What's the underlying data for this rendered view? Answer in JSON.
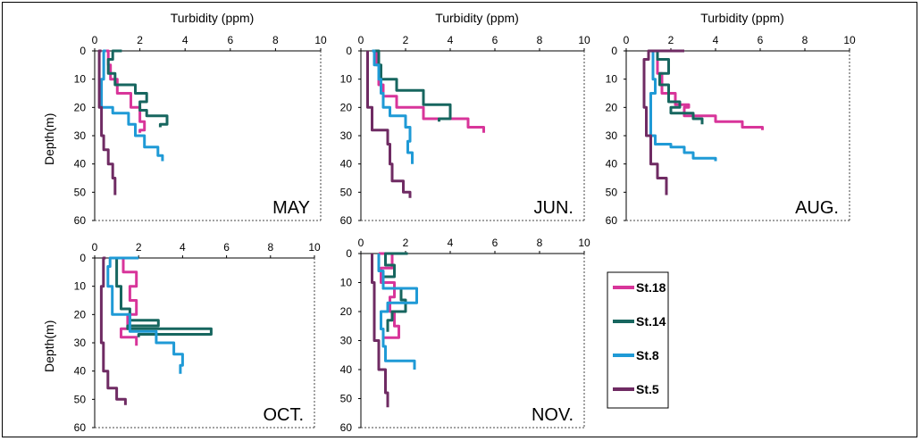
{
  "chart_data": {
    "type": "line",
    "xlabel": "Turbidity (ppm)",
    "ylabel": "Depth(m)",
    "xlim": [
      0,
      10
    ],
    "ylim": [
      0,
      60
    ],
    "x_ticks": [
      "0",
      "2",
      "4",
      "6",
      "8",
      "10"
    ],
    "y_ticks": [
      "0",
      "10",
      "20",
      "30",
      "40",
      "50",
      "60"
    ],
    "grid": false,
    "legend_position": "right, below AUG. panel",
    "legend": [
      "St.18",
      "St.14",
      "St.8",
      "St.5"
    ],
    "colors": {
      "St.18": "#d8359a",
      "St.14": "#17665f",
      "St.8": "#1f9ad6",
      "St.5": "#6f2b63"
    },
    "panels": [
      {
        "month": "MAY",
        "series": [
          {
            "name": "St.18",
            "points": [
              [
                0.5,
                0
              ],
              [
                0.6,
                5
              ],
              [
                0.7,
                10
              ],
              [
                1.0,
                15
              ],
              [
                1.6,
                20
              ],
              [
                2.0,
                25
              ],
              [
                2.2,
                28
              ],
              [
                2.0,
                29
              ]
            ]
          },
          {
            "name": "St.14",
            "points": [
              [
                1.2,
                0
              ],
              [
                0.8,
                3
              ],
              [
                0.6,
                8
              ],
              [
                0.9,
                12
              ],
              [
                1.8,
                15
              ],
              [
                2.3,
                18
              ],
              [
                2.0,
                21
              ],
              [
                2.3,
                23
              ],
              [
                3.2,
                26
              ],
              [
                2.9,
                27
              ]
            ]
          },
          {
            "name": "St.8",
            "points": [
              [
                0.5,
                0
              ],
              [
                0.4,
                5
              ],
              [
                0.4,
                10
              ],
              [
                0.3,
                15
              ],
              [
                0.3,
                20
              ],
              [
                0.8,
                22
              ],
              [
                1.5,
                26
              ],
              [
                1.8,
                30
              ],
              [
                2.2,
                34
              ],
              [
                2.8,
                37
              ],
              [
                3.0,
                39
              ]
            ]
          },
          {
            "name": "St.5",
            "points": [
              [
                0.3,
                0
              ],
              [
                0.2,
                10
              ],
              [
                0.2,
                20
              ],
              [
                0.3,
                30
              ],
              [
                0.4,
                35
              ],
              [
                0.6,
                40
              ],
              [
                0.8,
                45
              ],
              [
                0.9,
                51
              ]
            ]
          }
        ]
      },
      {
        "month": "JUN.",
        "series": [
          {
            "name": "St.18",
            "points": [
              [
                0.7,
                0
              ],
              [
                0.7,
                5
              ],
              [
                0.8,
                12
              ],
              [
                1.0,
                16
              ],
              [
                1.6,
                20
              ],
              [
                2.8,
                24
              ],
              [
                4.8,
                27
              ],
              [
                5.5,
                29
              ]
            ]
          },
          {
            "name": "St.14",
            "points": [
              [
                0.6,
                0
              ],
              [
                0.8,
                5
              ],
              [
                0.9,
                10
              ],
              [
                1.6,
                14
              ],
              [
                2.8,
                19
              ],
              [
                4.0,
                24
              ],
              [
                3.5,
                25
              ]
            ]
          },
          {
            "name": "St.8",
            "points": [
              [
                0.5,
                0
              ],
              [
                0.6,
                5
              ],
              [
                0.8,
                10
              ],
              [
                0.9,
                15
              ],
              [
                1.0,
                20
              ],
              [
                1.3,
                23
              ],
              [
                2.0,
                27
              ],
              [
                2.2,
                32
              ],
              [
                2.1,
                36
              ],
              [
                2.3,
                40
              ]
            ]
          },
          {
            "name": "St.5",
            "points": [
              [
                0.3,
                0
              ],
              [
                0.3,
                10
              ],
              [
                0.3,
                20
              ],
              [
                0.5,
                28
              ],
              [
                1.2,
                33
              ],
              [
                1.3,
                40
              ],
              [
                1.4,
                46
              ],
              [
                1.9,
                50
              ],
              [
                2.2,
                52
              ]
            ]
          }
        ]
      },
      {
        "month": "AUG.",
        "series": [
          {
            "name": "St.18",
            "points": [
              [
                1.3,
                0
              ],
              [
                1.4,
                8
              ],
              [
                1.6,
                15
              ],
              [
                2.2,
                19
              ],
              [
                2.8,
                20
              ],
              [
                2.6,
                23
              ],
              [
                4.0,
                25
              ],
              [
                5.2,
                27
              ],
              [
                6.1,
                28
              ]
            ]
          },
          {
            "name": "St.14",
            "points": [
              [
                1.6,
                0
              ],
              [
                1.4,
                3
              ],
              [
                1.9,
                8
              ],
              [
                1.5,
                12
              ],
              [
                1.9,
                18
              ],
              [
                2.4,
                20
              ],
              [
                2.0,
                22
              ],
              [
                3.0,
                24
              ],
              [
                3.4,
                26
              ]
            ]
          },
          {
            "name": "St.8",
            "points": [
              [
                1.2,
                0
              ],
              [
                1.2,
                10
              ],
              [
                1.3,
                15
              ],
              [
                1.1,
                20
              ],
              [
                1.1,
                30
              ],
              [
                1.3,
                33
              ],
              [
                2.0,
                34
              ],
              [
                2.6,
                36
              ],
              [
                3.0,
                38
              ],
              [
                4.0,
                39
              ]
            ]
          },
          {
            "name": "St.5",
            "points": [
              [
                2.6,
                0
              ],
              [
                1.0,
                3
              ],
              [
                0.8,
                10
              ],
              [
                0.8,
                20
              ],
              [
                0.9,
                30
              ],
              [
                1.1,
                40
              ],
              [
                1.4,
                45
              ],
              [
                1.8,
                48
              ],
              [
                1.8,
                51
              ]
            ]
          }
        ]
      },
      {
        "month": "OCT.",
        "series": [
          {
            "name": "St.18",
            "points": [
              [
                0.9,
                0
              ],
              [
                1.3,
                5
              ],
              [
                1.9,
                10
              ],
              [
                1.6,
                15
              ],
              [
                1.9,
                20
              ],
              [
                1.5,
                25
              ],
              [
                1.2,
                28
              ],
              [
                1.9,
                31
              ]
            ]
          },
          {
            "name": "St.14",
            "points": [
              [
                0.9,
                0
              ],
              [
                1.0,
                10
              ],
              [
                1.2,
                18
              ],
              [
                1.6,
                22
              ],
              [
                2.9,
                24
              ],
              [
                1.5,
                25
              ],
              [
                5.3,
                27
              ],
              [
                2.0,
                28
              ]
            ]
          },
          {
            "name": "St.8",
            "points": [
              [
                2.0,
                0
              ],
              [
                0.7,
                3
              ],
              [
                0.6,
                10
              ],
              [
                0.8,
                20
              ],
              [
                1.6,
                26
              ],
              [
                2.8,
                30
              ],
              [
                3.6,
                34
              ],
              [
                4.0,
                38
              ],
              [
                3.9,
                41
              ]
            ]
          },
          {
            "name": "St.5",
            "points": [
              [
                0.5,
                0
              ],
              [
                0.4,
                10
              ],
              [
                0.3,
                20
              ],
              [
                0.3,
                30
              ],
              [
                0.4,
                40
              ],
              [
                0.6,
                46
              ],
              [
                1.0,
                50
              ],
              [
                1.4,
                52
              ]
            ]
          }
        ]
      },
      {
        "month": "NOV.",
        "series": [
          {
            "name": "St.18",
            "points": [
              [
                0.8,
                0
              ],
              [
                1.4,
                5
              ],
              [
                0.9,
                10
              ],
              [
                1.5,
                15
              ],
              [
                1.3,
                20
              ],
              [
                1.5,
                25
              ],
              [
                1.7,
                29
              ],
              [
                1.0,
                32
              ]
            ]
          },
          {
            "name": "St.14",
            "points": [
              [
                2.1,
                0
              ],
              [
                1.1,
                4
              ],
              [
                1.5,
                8
              ],
              [
                1.0,
                12
              ],
              [
                1.8,
                16
              ],
              [
                2.0,
                20
              ],
              [
                1.4,
                23
              ],
              [
                1.2,
                27
              ]
            ]
          },
          {
            "name": "St.8",
            "points": [
              [
                0.8,
                0
              ],
              [
                0.8,
                6
              ],
              [
                1.0,
                12
              ],
              [
                2.5,
                17
              ],
              [
                1.2,
                20
              ],
              [
                0.9,
                26
              ],
              [
                1.0,
                32
              ],
              [
                1.1,
                37
              ],
              [
                2.4,
                40
              ]
            ]
          },
          {
            "name": "St.5",
            "points": [
              [
                0.5,
                0
              ],
              [
                0.5,
                10
              ],
              [
                0.6,
                20
              ],
              [
                0.6,
                30
              ],
              [
                0.8,
                40
              ],
              [
                1.1,
                48
              ],
              [
                1.2,
                53
              ]
            ]
          }
        ]
      }
    ]
  }
}
